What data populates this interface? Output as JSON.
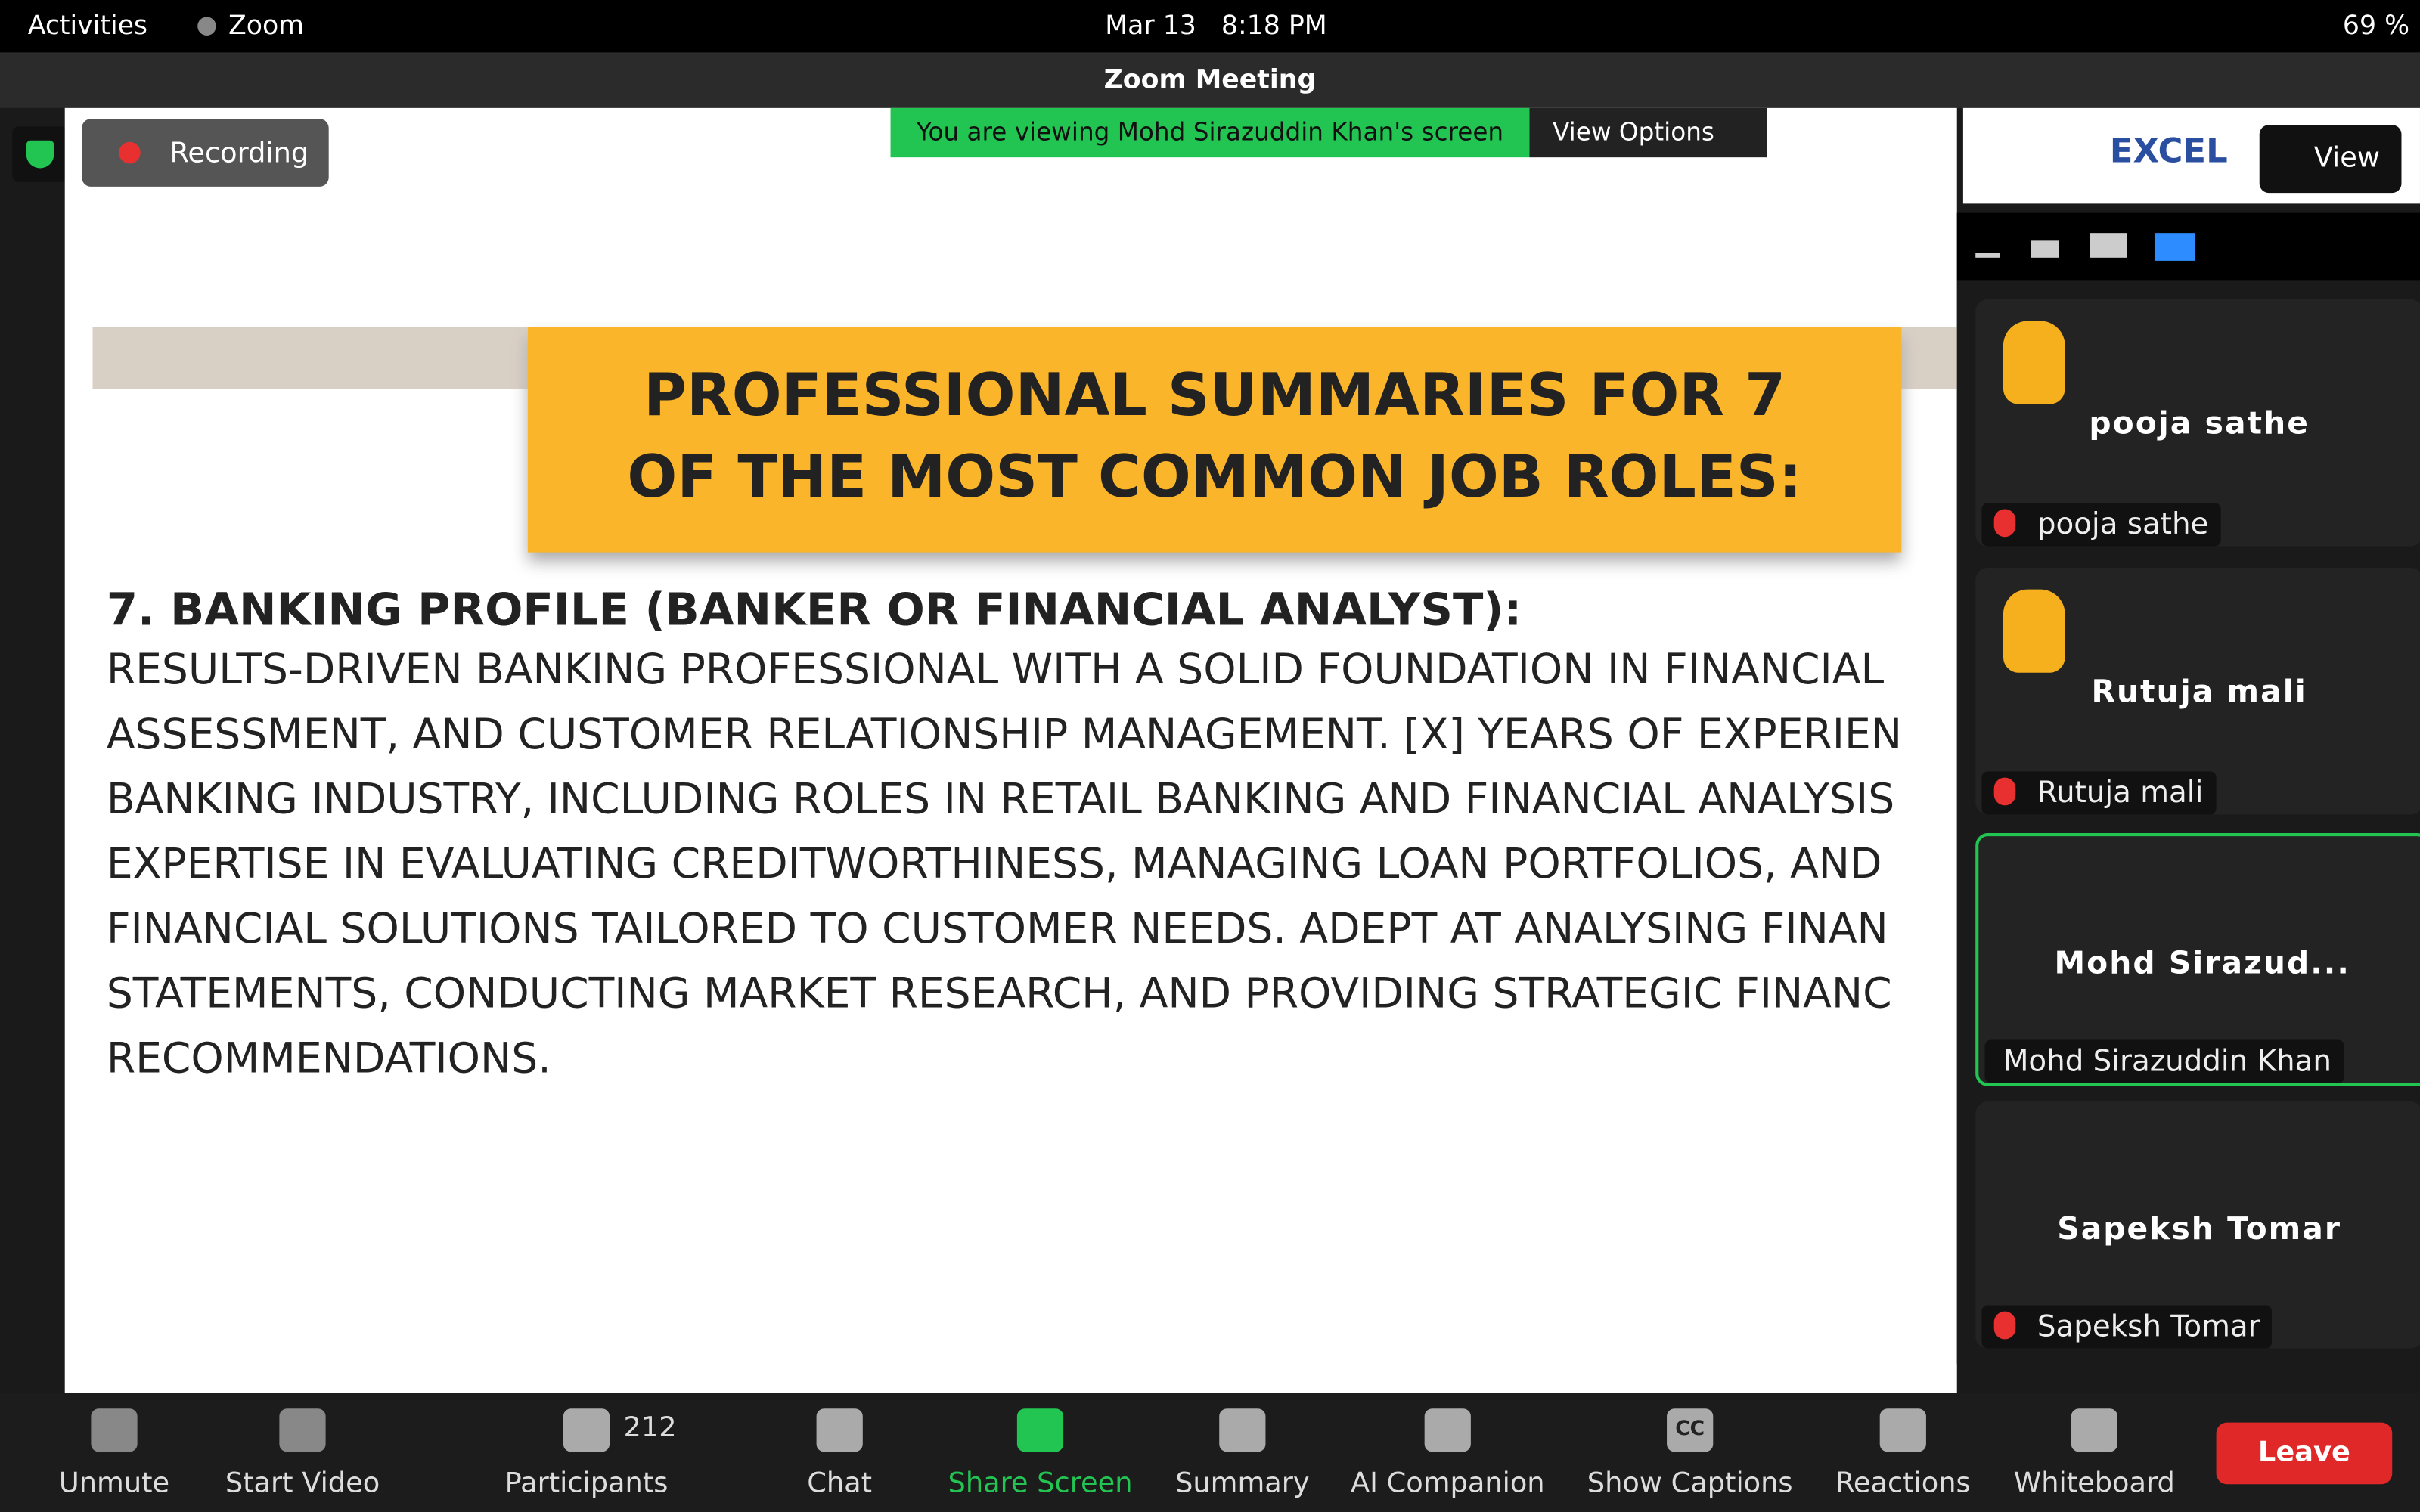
{
  "system_bar": {
    "activities": "Activities",
    "app": "Zoom",
    "datetime": "Mar 13   8:18 PM",
    "battery": "69 %"
  },
  "window": {
    "title": "Zoom Meeting"
  },
  "meeting": {
    "recording": "Recording",
    "share_banner": "You are viewing Mohd Sirazuddin Khan's screen",
    "view_options": "View Options",
    "view": "View",
    "logo": "EXCEL"
  },
  "slide": {
    "heading_lines": [
      "PROFESSIONAL SUMMARIES FOR 7",
      "OF THE MOST COMMON JOB ROLES:"
    ],
    "subheading": "7. BANKING PROFILE (BANKER OR FINANCIAL ANALYST):",
    "body_lines": [
      "RESULTS-DRIVEN BANKING PROFESSIONAL WITH A SOLID FOUNDATION IN FINANCIAL",
      "ASSESSMENT, AND CUSTOMER RELATIONSHIP MANAGEMENT. [X] YEARS OF EXPERIEN",
      "BANKING INDUSTRY, INCLUDING ROLES IN RETAIL BANKING AND FINANCIAL ANALYSIS",
      "EXPERTISE IN EVALUATING CREDITWORTHINESS, MANAGING LOAN PORTFOLIOS, AND",
      "FINANCIAL SOLUTIONS TAILORED TO CUSTOMER NEEDS. ADEPT AT ANALYSING FINAN",
      "STATEMENTS, CONDUCTING MARKET RESEARCH, AND PROVIDING STRATEGIC FINANC",
      "RECOMMENDATIONS."
    ]
  },
  "participants": [
    {
      "display": "pooja sathe",
      "label": "pooja sathe"
    },
    {
      "display": "Rutuja mali",
      "label": "Rutuja mali"
    },
    {
      "display": "Mohd Sirazud...",
      "label": "Mohd Sirazuddin Khan"
    },
    {
      "display": "Sapeksh Tomar",
      "label": "Sapeksh Tomar"
    }
  ],
  "toolbar": {
    "items": [
      "Unmute",
      "Start Video",
      "Participants",
      "Chat",
      "Share Screen",
      "Summary",
      "AI Companion",
      "Show Captions",
      "Reactions",
      "Whiteboard"
    ],
    "participant_count": "212",
    "captions_icon": "CC",
    "leave": "Leave"
  }
}
